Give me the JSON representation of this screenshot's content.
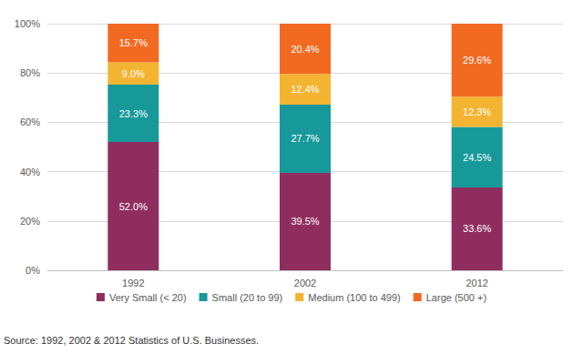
{
  "chart_data": {
    "type": "bar",
    "stacked": true,
    "data_labels": true,
    "grid": true,
    "legend": "bottom",
    "categories": [
      "1992",
      "2002",
      "2012"
    ],
    "series": [
      {
        "name": "Very Small (< 20)",
        "color": "#8f2d5e",
        "values": [
          52.0,
          39.5,
          33.6
        ],
        "value_labels": [
          "52.0%",
          "39.5%",
          "33.6%"
        ]
      },
      {
        "name": "Small (20 to 99)",
        "color": "#17999a",
        "values": [
          23.3,
          27.7,
          24.5
        ],
        "value_labels": [
          "23.3%",
          "27.7%",
          "24.5%"
        ]
      },
      {
        "name": "Medium (100 to 499)",
        "color": "#f3b431",
        "values": [
          9.0,
          12.4,
          12.3
        ],
        "value_labels": [
          "9.0%",
          "12.4%",
          "12.3%"
        ]
      },
      {
        "name": "Large (500 +)",
        "color": "#f26a21",
        "values": [
          15.7,
          20.4,
          29.6
        ],
        "value_labels": [
          "15.7%",
          "20.4%",
          "29.6%"
        ]
      }
    ],
    "ylim": [
      0,
      100
    ],
    "yticks": [
      {
        "value": 0,
        "label": "0%"
      },
      {
        "value": 20,
        "label": "20%"
      },
      {
        "value": 40,
        "label": "40%"
      },
      {
        "value": 60,
        "label": "60%"
      },
      {
        "value": 80,
        "label": "80%"
      },
      {
        "value": 100,
        "label": "100%"
      }
    ],
    "annotations": [
      "Source: 1992, 2002 & 2012 Statistics of U.S. Businesses."
    ]
  }
}
